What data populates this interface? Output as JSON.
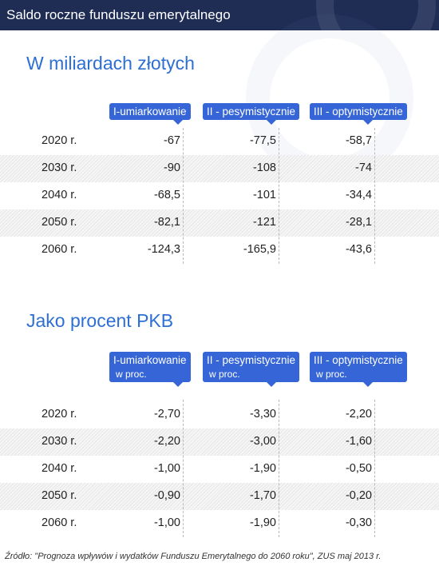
{
  "title": "Saldo roczne funduszu emerytalnego",
  "sections": [
    {
      "title": "W miliardach złotych",
      "columns": [
        {
          "label": "I-umiarkowanie",
          "sub": ""
        },
        {
          "label": "II - pesymistycznie",
          "sub": ""
        },
        {
          "label": "III - optymistycznie",
          "sub": ""
        }
      ],
      "rows": [
        {
          "year": "2020 r.",
          "v1": "-67",
          "v2": "-77,5",
          "v3": "-58,7"
        },
        {
          "year": "2030 r.",
          "v1": "-90",
          "v2": "-108",
          "v3": "-74"
        },
        {
          "year": "2040 r.",
          "v1": "-68,5",
          "v2": "-101",
          "v3": "-34,4"
        },
        {
          "year": "2050 r.",
          "v1": "-82,1",
          "v2": "-121",
          "v3": "-28,1"
        },
        {
          "year": "2060 r.",
          "v1": "-124,3",
          "v2": "-165,9",
          "v3": "-43,6"
        }
      ]
    },
    {
      "title": "Jako procent PKB",
      "columns": [
        {
          "label": "I-umiarkowanie",
          "sub": "w proc."
        },
        {
          "label": "II - pesymistycznie",
          "sub": "w proc."
        },
        {
          "label": "III - optymistycznie",
          "sub": "w proc."
        }
      ],
      "rows": [
        {
          "year": "2020 r.",
          "v1": "-2,70",
          "v2": "-3,30",
          "v3": "-2,20"
        },
        {
          "year": "2030 r.",
          "v1": "-2,20",
          "v2": "-3,00",
          "v3": "-1,60"
        },
        {
          "year": "2040 r.",
          "v1": "-1,00",
          "v2": "-1,90",
          "v3": "-0,50"
        },
        {
          "year": "2050 r.",
          "v1": "-0,90",
          "v2": "-1,70",
          "v3": "-0,20"
        },
        {
          "year": "2060 r.",
          "v1": "-1,00",
          "v2": "-1,90",
          "v3": "-0,30"
        }
      ]
    }
  ],
  "source": "Źródło: \"Prognoza wpływów i wydatków Funduszu Emerytalnego do 2060 roku\", ZUS maj 2013 r.",
  "colors": {
    "header_bg": "#1f2d55",
    "accent_blue": "#3565d6",
    "title_blue": "#2d6fd2"
  }
}
